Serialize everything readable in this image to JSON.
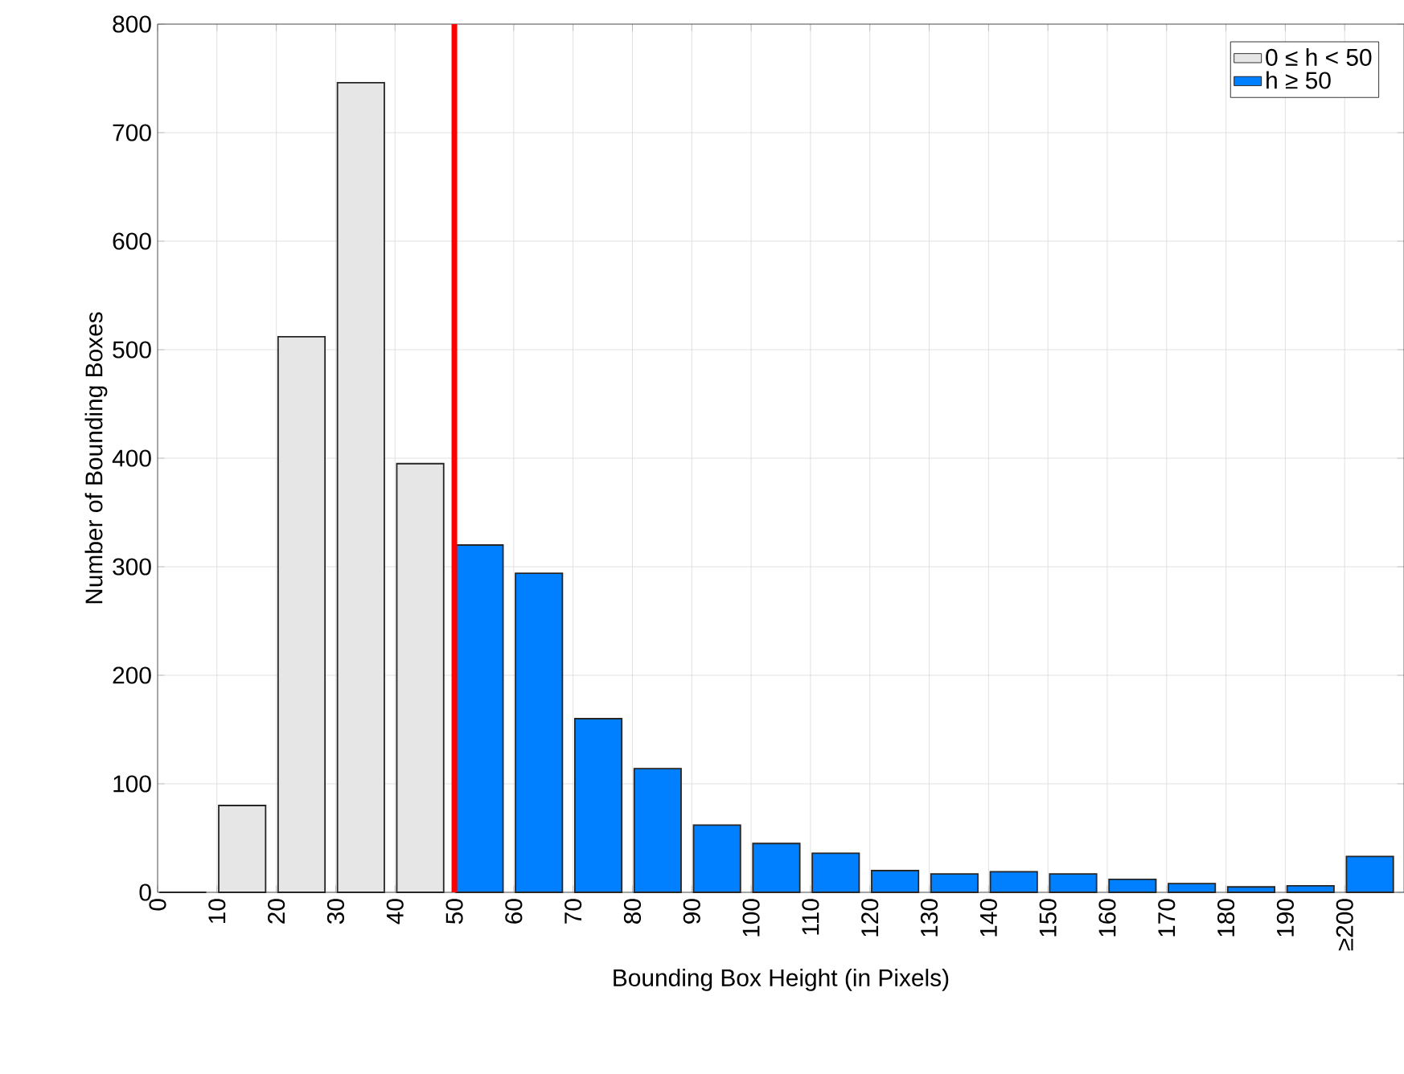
{
  "chart_data": {
    "type": "histogram",
    "xlabel": "Bounding Box Height (in Pixels)",
    "ylabel": "Number of Bounding Boxes",
    "bins": [
      0,
      10,
      20,
      30,
      40,
      50,
      60,
      70,
      80,
      90,
      100,
      110,
      120,
      130,
      140,
      150,
      160,
      170,
      180,
      190,
      200,
      210
    ],
    "series": [
      {
        "name": "0 ≤ h < 50",
        "color": "#e6e6e6",
        "values": [
          0,
          80,
          512,
          746,
          395,
          null,
          null,
          null,
          null,
          null,
          null,
          null,
          null,
          null,
          null,
          null,
          null,
          null,
          null,
          null,
          null
        ]
      },
      {
        "name": "h ≥ 50",
        "color": "#0080ff",
        "values": [
          null,
          null,
          null,
          null,
          null,
          320,
          294,
          160,
          114,
          62,
          45,
          36,
          20,
          17,
          19,
          17,
          12,
          8,
          5,
          6,
          33
        ]
      }
    ],
    "xlim": [
      0,
      210
    ],
    "ylim": [
      0,
      800
    ],
    "xticks": [
      0,
      10,
      20,
      30,
      40,
      50,
      60,
      70,
      80,
      90,
      100,
      110,
      120,
      130,
      140,
      150,
      160,
      170,
      180,
      190,
      {
        "value": 200,
        "label": "≥200"
      }
    ],
    "yticks": [
      0,
      100,
      200,
      300,
      400,
      500,
      600,
      700,
      800
    ],
    "ref_lines": [
      {
        "axis": "x",
        "value": 50,
        "color": "#ff0000"
      }
    ],
    "grid": true,
    "legend": "top right"
  }
}
